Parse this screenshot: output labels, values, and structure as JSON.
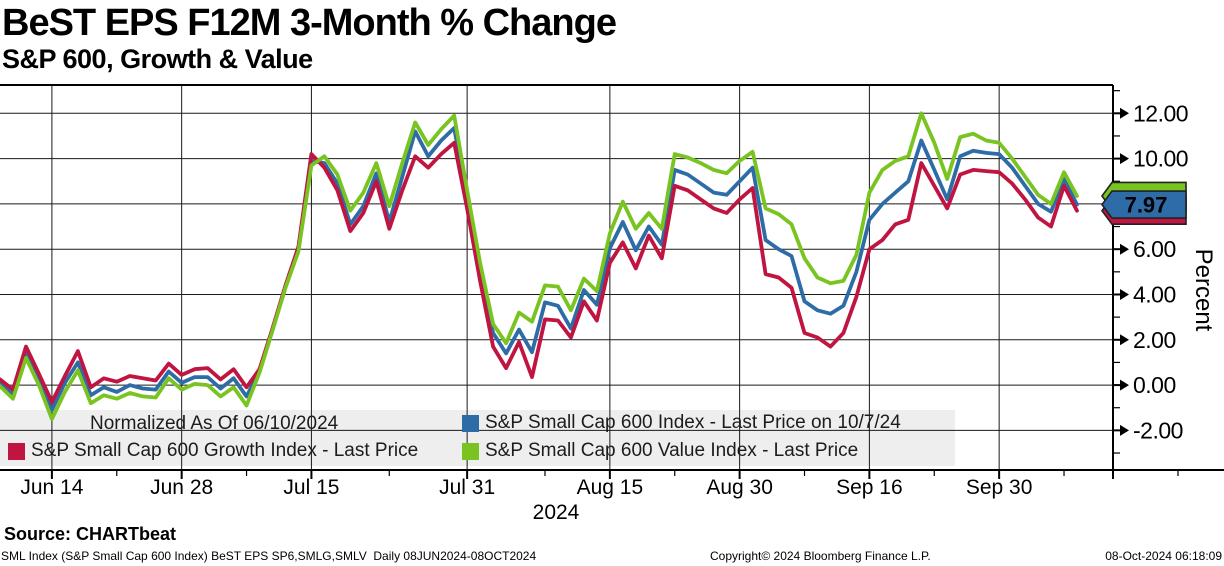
{
  "title": "BeST EPS F12M 3-Month % Change",
  "subtitle": "S&P 600, Growth & Value",
  "source_label": "Source: CHARTbeat",
  "footer": {
    "left": "SML Index (S&P Small Cap 600 Index) BeST EPS SP6,SMLG,SMLV  Daily 08JUN2024-08OCT2024",
    "center": "Copyright© 2024 Bloomberg Finance L.P.",
    "right": "08-Oct-2024 06:18:09"
  },
  "legend": {
    "normalized_note": "Normalized As Of 06/10/2024"
  },
  "chart_data": {
    "type": "line",
    "title": "BeST EPS F12M 3-Month % Change",
    "subtitle": "S&P 600, Growth & Value",
    "y_axis_label": "Percent",
    "year_label": "2024",
    "frequency": "Daily",
    "date_range": "08JUN2024-08OCT2024",
    "normalized_as_of": "06/10/2024",
    "grid": true,
    "legend_position": "bottom-left",
    "ylim": [
      -3.75,
      13.25
    ],
    "y_ticks": [
      12,
      10,
      8,
      6,
      4,
      2,
      0,
      -2
    ],
    "y_minor_ticks": [
      13,
      11,
      9,
      7,
      5,
      3,
      1,
      -1,
      -3
    ],
    "x_tick_labels": [
      "Jun 14",
      "Jun 28",
      "Jul 15",
      "Jul 31",
      "Aug 15",
      "Aug 30",
      "Sep 16",
      "Sep 30"
    ],
    "x_tick_indices": [
      4,
      14,
      24,
      36,
      47,
      57,
      67,
      77
    ],
    "x_minor_tick_indices": [
      9,
      19,
      30,
      42,
      52,
      62,
      72,
      82
    ],
    "series": [
      {
        "name": "S&P Small Cap 600 Index - Last Price on 10/7/24",
        "color": "#2d6ca6",
        "last_label": "7.97",
        "values": [
          0.1,
          -0.4,
          1.45,
          0.2,
          -1.1,
          0.1,
          1.0,
          -0.45,
          -0.1,
          -0.3,
          0.0,
          -0.15,
          -0.2,
          0.6,
          0.1,
          0.35,
          0.35,
          -0.15,
          0.3,
          -0.5,
          0.6,
          2.45,
          4.35,
          6.0,
          9.9,
          9.8,
          8.9,
          7.1,
          7.9,
          9.35,
          7.2,
          9.2,
          11.2,
          10.1,
          10.8,
          11.35,
          8.2,
          5.0,
          2.3,
          1.4,
          2.45,
          1.45,
          3.65,
          3.5,
          2.5,
          4.2,
          3.55,
          6.05,
          7.2,
          5.95,
          7.0,
          6.2,
          9.5,
          9.3,
          8.9,
          8.5,
          8.4,
          9.0,
          9.6,
          6.4,
          6.0,
          5.7,
          3.7,
          3.3,
          3.15,
          3.5,
          5.0,
          7.3,
          8.0,
          8.5,
          9.0,
          10.8,
          9.5,
          8.2,
          10.1,
          10.35,
          10.25,
          10.2,
          9.6,
          8.8,
          8.0,
          7.65,
          9.1,
          7.97
        ]
      },
      {
        "name": "S&P Small Cap 600 Growth Index - Last Price",
        "color": "#c01441",
        "last_label": "7.70",
        "values": [
          0.25,
          -0.2,
          1.7,
          0.5,
          -0.75,
          0.4,
          1.5,
          -0.1,
          0.3,
          0.15,
          0.4,
          0.3,
          0.2,
          0.95,
          0.45,
          0.7,
          0.75,
          0.25,
          0.7,
          -0.1,
          0.7,
          2.5,
          4.4,
          6.1,
          10.2,
          9.6,
          8.6,
          6.8,
          7.6,
          9.0,
          6.9,
          8.6,
          10.1,
          9.6,
          10.2,
          10.7,
          7.8,
          4.6,
          1.7,
          0.75,
          1.9,
          0.35,
          2.9,
          2.85,
          2.1,
          3.7,
          2.85,
          5.4,
          6.3,
          5.15,
          6.6,
          5.6,
          8.8,
          8.6,
          8.2,
          7.8,
          7.6,
          8.2,
          8.7,
          4.9,
          4.75,
          4.3,
          2.3,
          2.1,
          1.7,
          2.3,
          3.9,
          6.0,
          6.4,
          7.1,
          7.3,
          9.8,
          8.8,
          7.8,
          9.3,
          9.5,
          9.45,
          9.4,
          8.9,
          8.2,
          7.4,
          7.0,
          8.8,
          7.7
        ]
      },
      {
        "name": "S&P Small Cap 600 Value Index - Last Price",
        "color": "#7ac422",
        "last_label": "8.35",
        "values": [
          -0.05,
          -0.6,
          1.2,
          0.0,
          -1.5,
          -0.3,
          0.65,
          -0.8,
          -0.45,
          -0.6,
          -0.35,
          -0.5,
          -0.55,
          0.3,
          -0.2,
          0.05,
          0.0,
          -0.5,
          -0.1,
          -0.9,
          0.55,
          2.4,
          4.3,
          5.9,
          9.7,
          10.1,
          9.3,
          7.7,
          8.5,
          9.8,
          7.9,
          9.8,
          11.6,
          10.6,
          11.3,
          11.9,
          8.6,
          5.4,
          2.7,
          1.85,
          3.2,
          2.8,
          4.4,
          4.35,
          3.3,
          4.7,
          4.15,
          6.7,
          8.1,
          6.9,
          7.6,
          6.9,
          10.2,
          10.05,
          9.8,
          9.5,
          9.35,
          9.9,
          10.3,
          7.8,
          7.55,
          7.1,
          5.6,
          4.75,
          4.5,
          4.6,
          5.75,
          8.5,
          9.5,
          9.9,
          10.1,
          12.0,
          10.7,
          9.1,
          10.95,
          11.1,
          10.8,
          10.7,
          10.0,
          9.2,
          8.4,
          8.0,
          9.4,
          8.35
        ]
      }
    ]
  }
}
